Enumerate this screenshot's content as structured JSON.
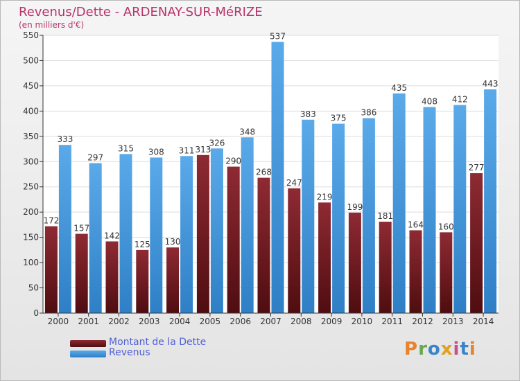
{
  "title": "Revenus/Dette - ARDENAY-SUR-MéRIZE",
  "subtitle": "(en milliers d'€)",
  "logo": {
    "text": "Proxiti",
    "colors": [
      "#e8822b",
      "#6aa84f",
      "#3b83c9",
      "#e0a11b",
      "#c94f8a",
      "#3b83c9",
      "#e8822b"
    ]
  },
  "legend": [
    {
      "label": "Montant de la Dette",
      "color": "#7a1f26"
    },
    {
      "label": "Revenus",
      "color": "#4a9fe2"
    }
  ],
  "chart_data": {
    "type": "bar",
    "title": "Revenus/Dette - ARDENAY-SUR-MéRIZE",
    "subtitle": "(en milliers d'€)",
    "categories": [
      "2000",
      "2001",
      "2002",
      "2003",
      "2004",
      "2005",
      "2006",
      "2007",
      "2008",
      "2009",
      "2010",
      "2011",
      "2012",
      "2013",
      "2014"
    ],
    "series": [
      {
        "name": "Montant de la Dette",
        "color": "#7a1f26",
        "values": [
          172,
          157,
          142,
          125,
          130,
          313,
          290,
          268,
          247,
          219,
          199,
          181,
          164,
          160,
          277
        ]
      },
      {
        "name": "Revenus",
        "color": "#4a9fe2",
        "values": [
          333,
          297,
          315,
          308,
          311,
          326,
          348,
          537,
          383,
          375,
          386,
          435,
          408,
          412,
          443
        ]
      }
    ],
    "ylim": [
      0,
      550
    ],
    "yticks": [
      0,
      50,
      100,
      150,
      200,
      250,
      300,
      350,
      400,
      450,
      500,
      550
    ],
    "grid": true,
    "legend_position": "bottom-left"
  }
}
